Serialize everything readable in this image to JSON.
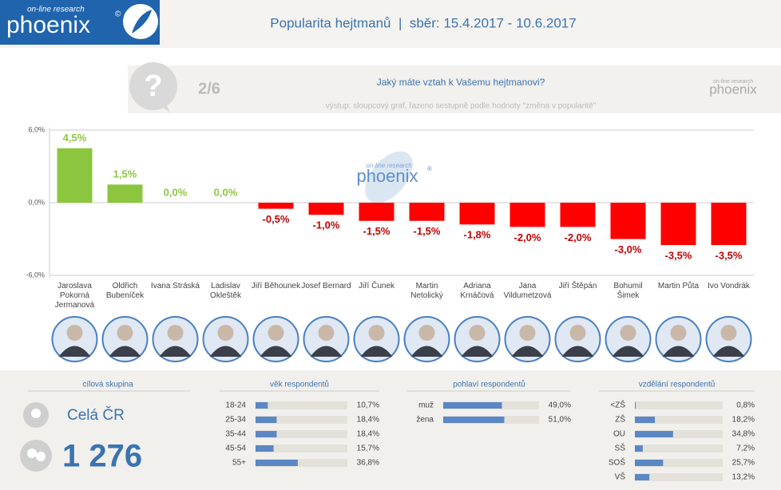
{
  "header": {
    "logo_small": "on-line research",
    "logo": "phoenix",
    "logo_mark": "©",
    "title": "Popularita hejtmanů  |  sběr: 15.4.2017 - 10.6.2017"
  },
  "question": {
    "icon": "?",
    "number": "2/6",
    "text": "Jaký máte vztah k Vašemu hejtmanovi?",
    "note": "výstup: sloupcový graf, řazeno sestupně podle hodnoty \"změna v popularitě\"",
    "logo_small": "on-line research",
    "logo": "phoenix"
  },
  "chart_data": {
    "type": "bar",
    "watermark_small": "on-line research",
    "watermark": "phoenix",
    "watermark_mark": "®",
    "categories": [
      "Jaroslava Pokorná Jermanová",
      "Oldřich Bubeníček",
      "Ivana Stráská",
      "Ladislav Okleštěk",
      "Jiří Běhounek",
      "Josef Bernard",
      "Jiří Čunek",
      "Martin Netolický",
      "Adriana Krnáčová",
      "Jana Vildumetzová",
      "Jiří Štěpán",
      "Bohumil Šimek",
      "Martin Půta",
      "Ivo Vondrák"
    ],
    "values": [
      4.5,
      1.5,
      0,
      0,
      -0.5,
      -1.0,
      -1.5,
      -1.5,
      -1.8,
      -2.0,
      -2.0,
      -3.0,
      -3.5,
      -3.5
    ],
    "value_labels": [
      "4,5%",
      "1,5%",
      "0,0%",
      "0,0%",
      "-0,5%",
      "-1,0%",
      "-1,5%",
      "-1,5%",
      "-1,8%",
      "-2,0%",
      "-2,0%",
      "-3,0%",
      "-3,5%",
      "-3,5%"
    ],
    "positive_color": "#8cc63f",
    "negative_color": "#ff0000",
    "positive_label_color": "#8cc63f",
    "negative_label_color": "#c00000",
    "ylim": [
      -6,
      6
    ],
    "yticks": [
      {
        "value": 6,
        "label": "6,0%"
      },
      {
        "value": 0,
        "label": "0,0%"
      },
      {
        "value": -6,
        "label": "-6,0%"
      }
    ],
    "grid": true
  },
  "target": {
    "title": "cílová skupina",
    "region": "Celá ČR",
    "count": "1 276"
  },
  "panels": [
    {
      "title": "věk respondentů",
      "rows": [
        {
          "label": "18-24",
          "value": 10.7,
          "value_label": "10,7%"
        },
        {
          "label": "25-34",
          "value": 18.4,
          "value_label": "18,4%"
        },
        {
          "label": "35-44",
          "value": 18.4,
          "value_label": "18,4%"
        },
        {
          "label": "45-54",
          "value": 15.7,
          "value_label": "15,7%"
        },
        {
          "label": "55+",
          "value": 36.8,
          "value_label": "36,8%"
        }
      ]
    },
    {
      "title": "pohlaví respondentů",
      "rows": [
        {
          "label": "muž",
          "value": 49.0,
          "value_label": "49,0%"
        },
        {
          "label": "žena",
          "value": 51.0,
          "value_label": "51,0%"
        }
      ]
    },
    {
      "title": "vzdělání respondentů",
      "rows": [
        {
          "label": "<ZŠ",
          "value": 0.8,
          "value_label": "0,8%"
        },
        {
          "label": "ZŠ",
          "value": 18.2,
          "value_label": "18,2%"
        },
        {
          "label": "OU",
          "value": 34.8,
          "value_label": "34,8%"
        },
        {
          "label": "SŠ",
          "value": 7.2,
          "value_label": "7,2%"
        },
        {
          "label": "SOŠ",
          "value": 25.7,
          "value_label": "25,7%"
        },
        {
          "label": "VŠ",
          "value": 13.2,
          "value_label": "13,2%"
        }
      ]
    }
  ]
}
